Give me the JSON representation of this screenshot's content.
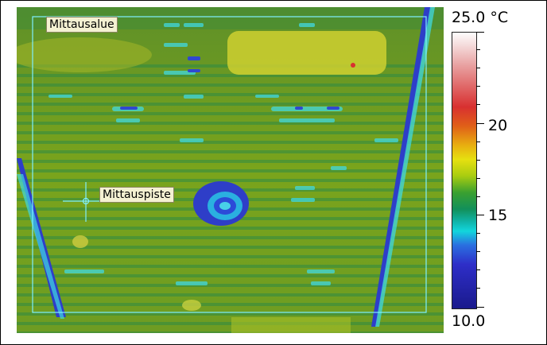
{
  "measurement_area": {
    "label": "Mittausalue"
  },
  "measurement_spot": {
    "label": "Mittauspiste"
  },
  "temperature_scale": {
    "max_label": "25.0 °C",
    "min_label": "10.0",
    "tick_20": "20",
    "tick_15": "15",
    "max_value": 25.0,
    "min_value": 10.0,
    "unit": "°C"
  },
  "colors": {
    "palette_hot": "#d83030",
    "palette_mid": "#3aa030",
    "palette_cold": "#1a1a8c",
    "overlay": "#7ff0ff"
  }
}
